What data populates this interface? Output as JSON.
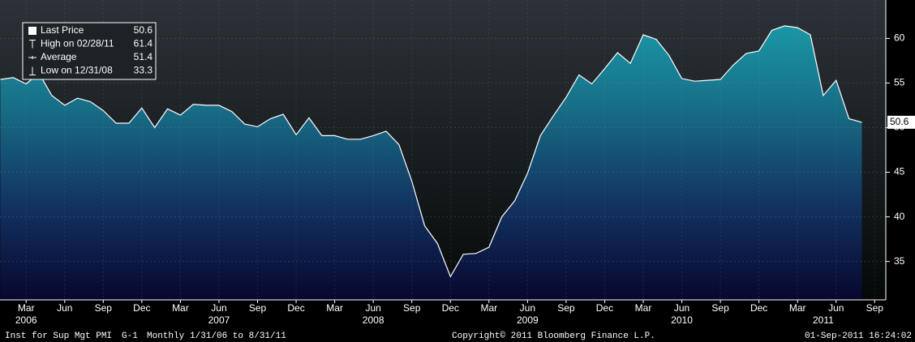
{
  "chart_data": {
    "type": "area-line",
    "title": "Inst for Sup Mgt PMI",
    "x": [
      "2006-01",
      "2006-02",
      "2006-03",
      "2006-04",
      "2006-05",
      "2006-06",
      "2006-07",
      "2006-08",
      "2006-09",
      "2006-10",
      "2006-11",
      "2006-12",
      "2007-01",
      "2007-02",
      "2007-03",
      "2007-04",
      "2007-05",
      "2007-06",
      "2007-07",
      "2007-08",
      "2007-09",
      "2007-10",
      "2007-11",
      "2007-12",
      "2008-01",
      "2008-02",
      "2008-03",
      "2008-04",
      "2008-05",
      "2008-06",
      "2008-07",
      "2008-08",
      "2008-09",
      "2008-10",
      "2008-11",
      "2008-12",
      "2009-01",
      "2009-02",
      "2009-03",
      "2009-04",
      "2009-05",
      "2009-06",
      "2009-07",
      "2009-08",
      "2009-09",
      "2009-10",
      "2009-11",
      "2009-12",
      "2010-01",
      "2010-02",
      "2010-03",
      "2010-04",
      "2010-05",
      "2010-06",
      "2010-07",
      "2010-08",
      "2010-09",
      "2010-10",
      "2010-11",
      "2010-12",
      "2011-01",
      "2011-02",
      "2011-03",
      "2011-04",
      "2011-05",
      "2011-06",
      "2011-07",
      "2011-08"
    ],
    "series": [
      {
        "name": "Last Price",
        "color": "#ffffff",
        "values": [
          55.4,
          55.6,
          54.9,
          56.1,
          53.6,
          52.5,
          53.3,
          52.9,
          51.9,
          50.5,
          50.5,
          52.2,
          50.0,
          52.1,
          51.4,
          52.6,
          52.5,
          52.5,
          51.8,
          50.4,
          50.1,
          51.0,
          51.5,
          49.2,
          51.1,
          49.1,
          49.1,
          48.7,
          48.7,
          49.1,
          49.6,
          48.1,
          44.0,
          39.0,
          37.0,
          33.3,
          35.8,
          35.9,
          36.6,
          40.0,
          41.8,
          44.9,
          49.1,
          51.3,
          53.4,
          55.9,
          54.9,
          56.6,
          58.4,
          57.2,
          60.4,
          59.9,
          58.1,
          55.5,
          55.2,
          55.3,
          55.4,
          57.0,
          58.3,
          58.6,
          60.9,
          61.4,
          61.2,
          60.4,
          53.6,
          55.3,
          51.0,
          50.6
        ]
      }
    ],
    "ylim": [
      30.7,
      64.3
    ],
    "yticks": [
      35,
      40,
      45,
      50,
      55,
      60
    ],
    "xticks": [
      {
        "value": "2006-03",
        "label": "Mar"
      },
      {
        "value": "2006-06",
        "label": "Jun"
      },
      {
        "value": "2006-09",
        "label": "Sep"
      },
      {
        "value": "2006-12",
        "label": "Dec"
      },
      {
        "value": "2007-03",
        "label": "Mar"
      },
      {
        "value": "2007-06",
        "label": "Jun"
      },
      {
        "value": "2007-09",
        "label": "Sep"
      },
      {
        "value": "2007-12",
        "label": "Dec"
      },
      {
        "value": "2008-03",
        "label": "Mar"
      },
      {
        "value": "2008-06",
        "label": "Jun"
      },
      {
        "value": "2008-09",
        "label": "Sep"
      },
      {
        "value": "2008-12",
        "label": "Dec"
      },
      {
        "value": "2009-03",
        "label": "Mar"
      },
      {
        "value": "2009-06",
        "label": "Jun"
      },
      {
        "value": "2009-09",
        "label": "Sep"
      },
      {
        "value": "2009-12",
        "label": "Dec"
      },
      {
        "value": "2010-03",
        "label": "Mar"
      },
      {
        "value": "2010-06",
        "label": "Jun"
      },
      {
        "value": "2010-09",
        "label": "Sep"
      },
      {
        "value": "2010-12",
        "label": "Dec"
      },
      {
        "value": "2011-03",
        "label": "Mar"
      },
      {
        "value": "2011-06",
        "label": "Jun"
      },
      {
        "value": "2011-09",
        "label": "Sep"
      }
    ],
    "year_labels": [
      {
        "value": "2006-03",
        "label": "2006"
      },
      {
        "value": "2007-06",
        "label": "2007"
      },
      {
        "value": "2008-06",
        "label": "2008"
      },
      {
        "value": "2009-06",
        "label": "2009"
      },
      {
        "value": "2010-06",
        "label": "2010"
      },
      {
        "value": "2011-05",
        "label": "2011"
      }
    ],
    "legend": [
      {
        "label": "Last Price",
        "value": 50.6
      },
      {
        "label": "High on 02/28/11",
        "value": 61.4
      },
      {
        "label": "Average",
        "value": 51.4
      },
      {
        "label": "Low on 12/31/08",
        "value": 33.3
      }
    ],
    "grid": true,
    "footer": {
      "chart_id": "G-1",
      "period": "Monthly",
      "range": "1/31/06 to 8/31/11",
      "copyright": "Copyright© 2011 Bloomberg Finance L.P.",
      "timestamp": "01-Sep-2011 16:24:02"
    }
  }
}
